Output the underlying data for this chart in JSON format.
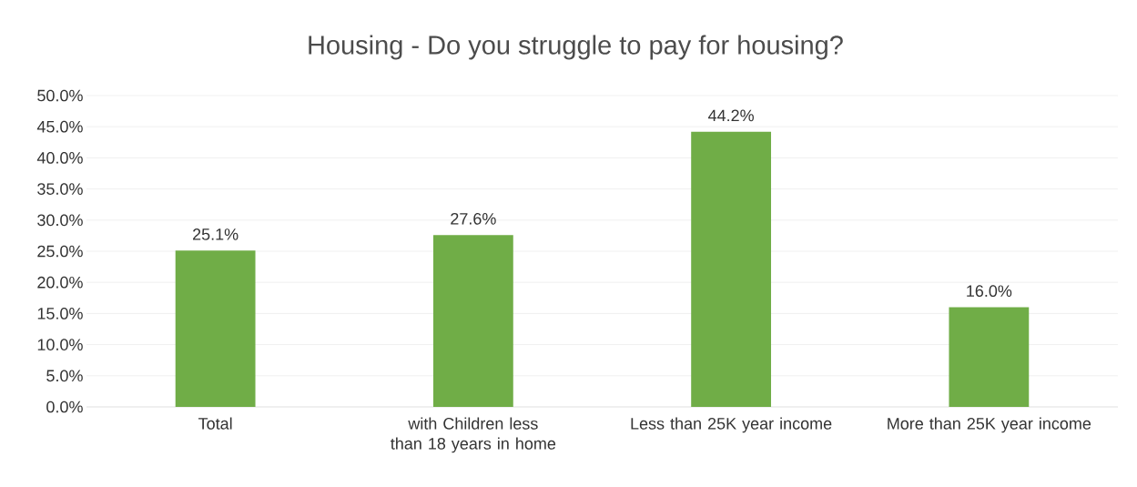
{
  "chart_data": {
    "type": "bar",
    "title": "Housing - Do you struggle to pay for housing?",
    "categories": [
      "Total",
      "with Children less than 18 years in home",
      "Less than 25K year income",
      "More than 25K year income"
    ],
    "values": [
      25.1,
      27.6,
      44.2,
      16.0
    ],
    "value_labels": [
      "25.1%",
      "27.6%",
      "44.2%",
      "16.0%"
    ],
    "color": "#70ad47",
    "ylim": [
      0,
      50
    ],
    "yticks": [
      {
        "value": 0,
        "label": "0.0%"
      },
      {
        "value": 5,
        "label": "5.0%"
      },
      {
        "value": 10,
        "label": "10.0%"
      },
      {
        "value": 15,
        "label": "15.0%"
      },
      {
        "value": 20,
        "label": "20.0%"
      },
      {
        "value": 25,
        "label": "25.0%"
      },
      {
        "value": 30,
        "label": "30.0%"
      },
      {
        "value": 35,
        "label": "35.0%"
      },
      {
        "value": 40,
        "label": "40.0%"
      },
      {
        "value": 45,
        "label": "45.0%"
      },
      {
        "value": 50,
        "label": "50.0%"
      }
    ],
    "grid": "y"
  }
}
